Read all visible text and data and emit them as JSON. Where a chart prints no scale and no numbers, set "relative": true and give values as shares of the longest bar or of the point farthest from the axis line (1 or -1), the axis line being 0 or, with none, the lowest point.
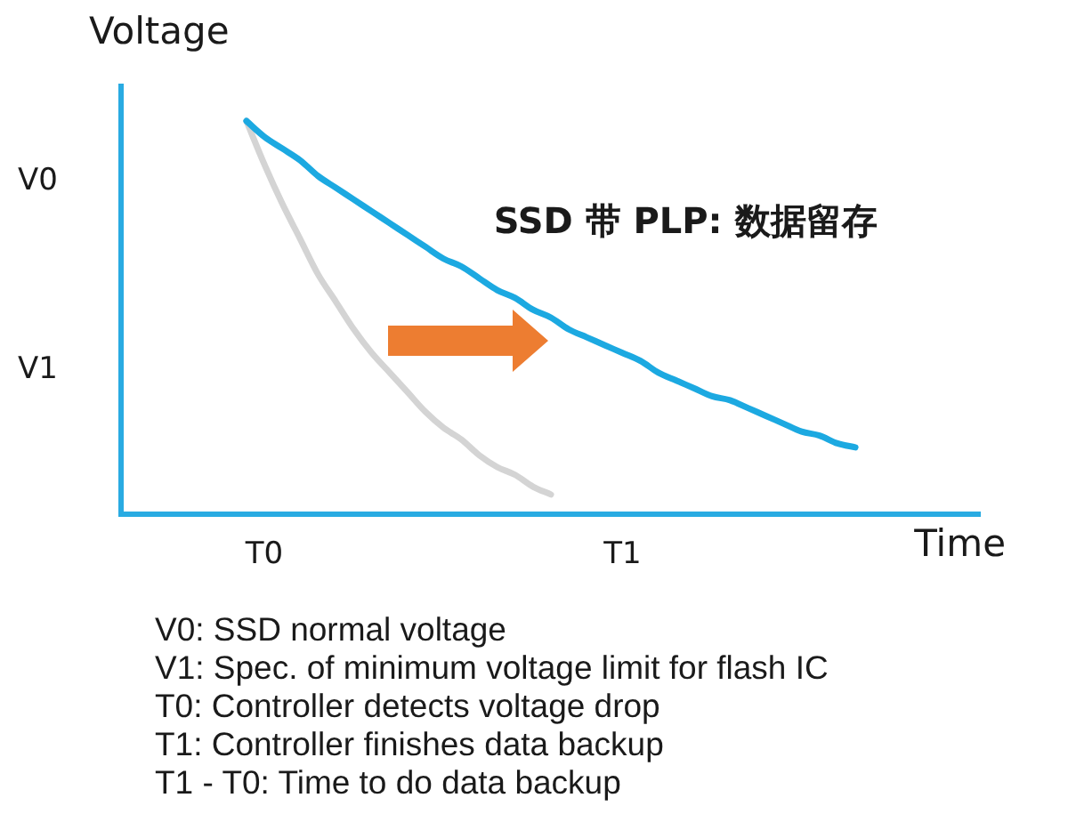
{
  "chart_data": {
    "type": "line",
    "relative": true,
    "ylabel": "Voltage",
    "xlabel": "Time",
    "categories": [
      null,
      null,
      null,
      null,
      null,
      null,
      null,
      null,
      "T0",
      null,
      null,
      null,
      null,
      null,
      null,
      null,
      null,
      null,
      null,
      null,
      null,
      null,
      null,
      null,
      null,
      null,
      null,
      null,
      "T1",
      null,
      null,
      null,
      null,
      null,
      null,
      null,
      null,
      null,
      null,
      null,
      null,
      null,
      null,
      null,
      null,
      null,
      null,
      null,
      null
    ],
    "series": [
      {
        "name": "SSD 带 PLP: 数据留存",
        "color": "#1ca9e1",
        "values": [
          null,
          null,
          null,
          null,
          null,
          null,
          null,
          1.0,
          0.96,
          0.93,
          0.9,
          0.86,
          0.83,
          0.8,
          0.77,
          0.74,
          0.71,
          0.68,
          0.65,
          0.63,
          0.6,
          0.57,
          0.55,
          0.52,
          0.5,
          0.47,
          0.45,
          0.43,
          0.41,
          0.39,
          0.36,
          0.34,
          0.32,
          0.3,
          0.29,
          0.27,
          0.25,
          0.23,
          0.21,
          0.2,
          0.18,
          0.17,
          null,
          null,
          null,
          null,
          null,
          null,
          null
        ]
      },
      {
        "color": "#d4d4d4",
        "values": [
          null,
          null,
          null,
          null,
          null,
          null,
          null,
          1.0,
          0.89,
          0.79,
          0.7,
          0.61,
          0.54,
          0.47,
          0.41,
          0.36,
          0.31,
          0.26,
          0.22,
          0.19,
          0.15,
          0.12,
          0.1,
          0.07,
          0.05,
          null,
          null,
          null,
          null,
          null,
          null,
          null,
          null,
          null,
          null,
          null,
          null,
          null,
          null,
          null,
          null,
          null,
          null,
          null,
          null,
          null,
          null,
          null,
          null
        ]
      }
    ],
    "annotations": [
      "V0",
      "V1",
      "V0: SSD normal voltage",
      "V1: Spec. of minimum voltage limit for flash IC",
      "T0: Controller detects voltage drop",
      "T1: Controller finishes data backup",
      "T1 - T0: Time to do data backup"
    ],
    "legend": false,
    "grid": false,
    "marker": "none"
  }
}
